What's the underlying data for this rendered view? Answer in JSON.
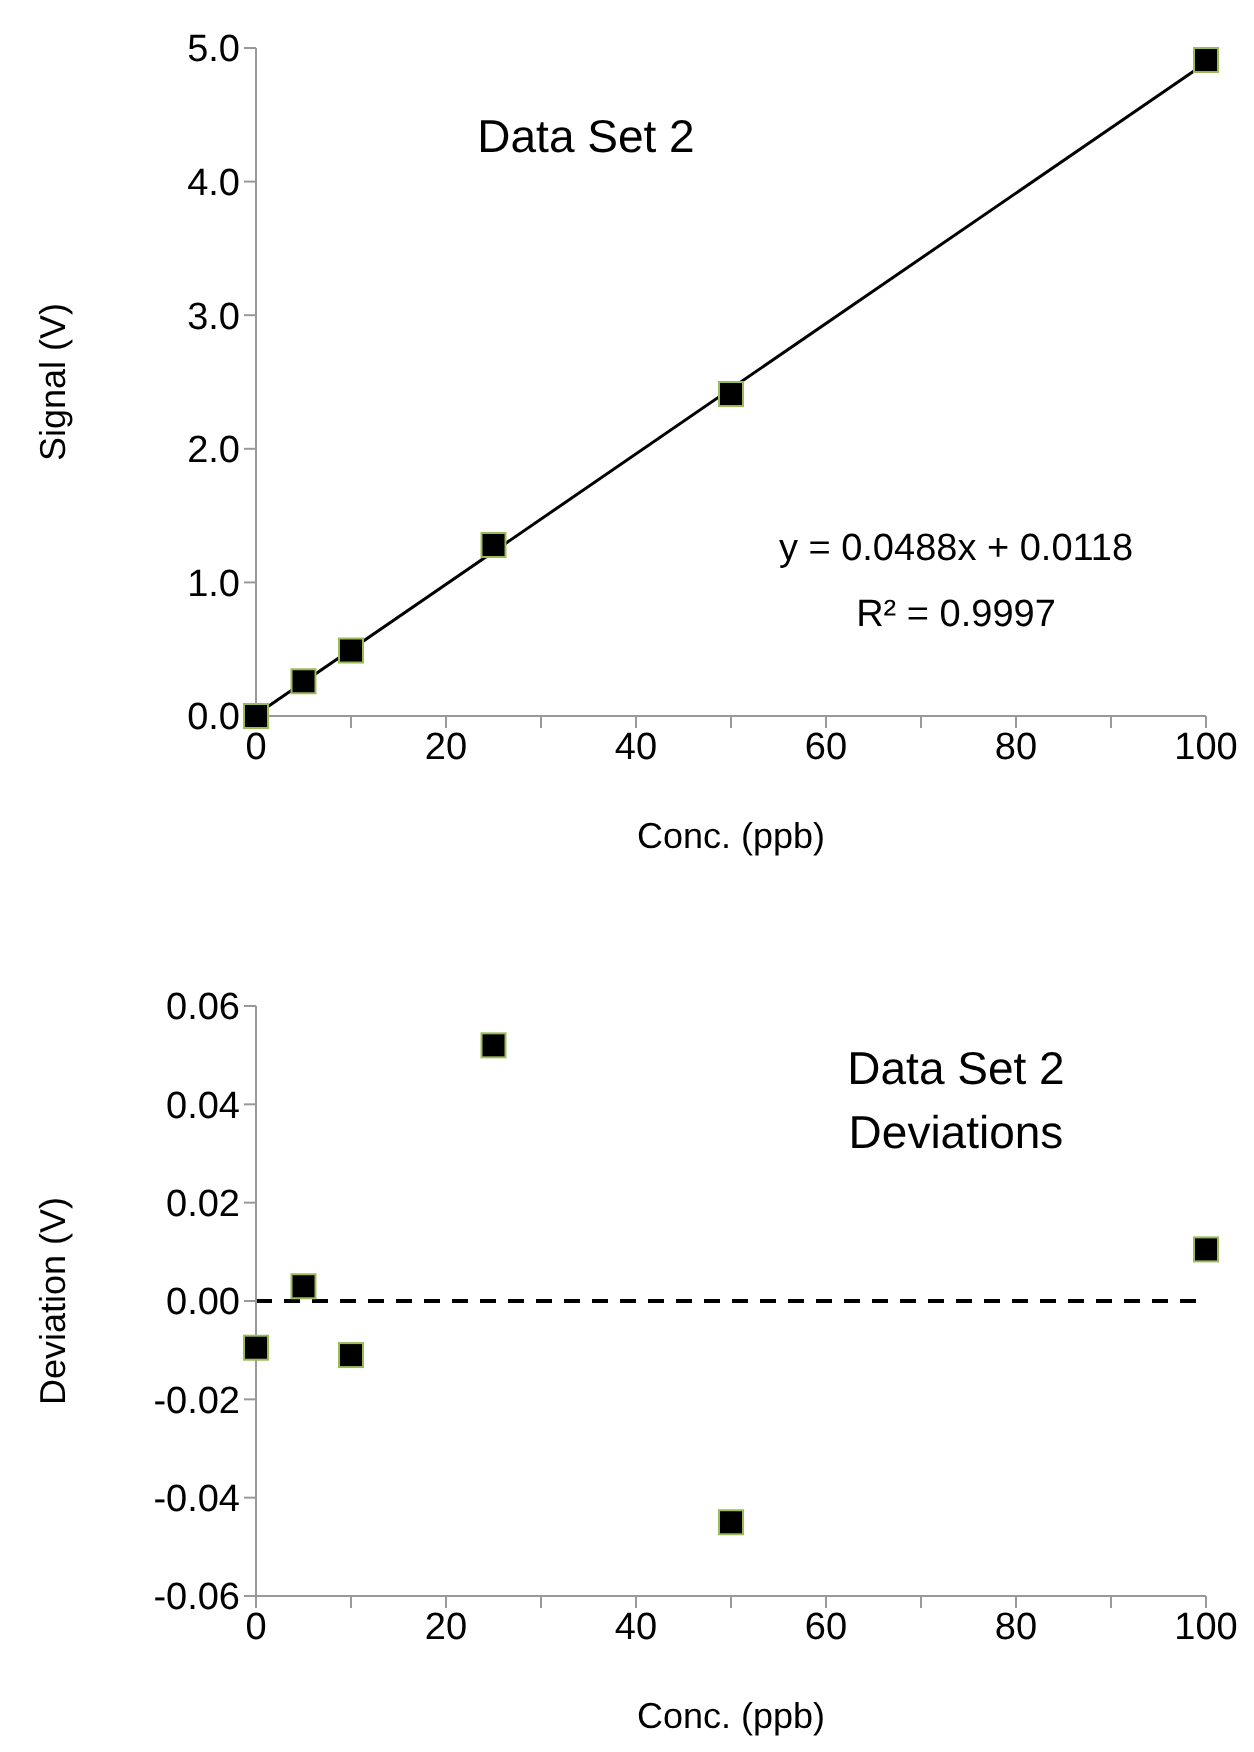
{
  "chart_data": [
    {
      "type": "scatter",
      "title": "Data Set 2",
      "xlabel": "Conc. (ppb)",
      "ylabel": "Signal (V)",
      "x": [
        0,
        5,
        10,
        25,
        50,
        100
      ],
      "series": [
        {
          "type": "scatter",
          "color": "#000000",
          "marker": "square",
          "values": [
            0,
            0.26,
            0.49,
            1.28,
            2.41,
            4.91
          ]
        },
        {
          "type": "line",
          "color": "#000000",
          "marker": "none",
          "line_style": "solid",
          "x": [
            0,
            100
          ],
          "values": [
            0.01,
            4.89
          ]
        }
      ],
      "annotations": [
        "y = 0.0488x + 0.0118",
        "R² = 0.9997"
      ],
      "xlim": [
        0,
        100
      ],
      "ylim": [
        0,
        5
      ],
      "xticks": [
        0,
        {
          "value": 10,
          "label": null
        },
        20,
        {
          "value": 30,
          "label": null
        },
        40,
        {
          "value": 50,
          "label": null
        },
        60,
        {
          "value": 70,
          "label": null
        },
        80,
        {
          "value": 90,
          "label": null
        },
        100
      ],
      "yticks": [
        {
          "value": 0,
          "label": "0.0"
        },
        {
          "value": 1,
          "label": "1.0"
        },
        {
          "value": 2,
          "label": "2.0"
        },
        {
          "value": 3,
          "label": "3.0"
        },
        {
          "value": 4,
          "label": "4.0"
        },
        {
          "value": 5,
          "label": "5.0"
        }
      ],
      "grid": false,
      "legend": false
    },
    {
      "type": "scatter",
      "title": "Data Set 2 Deviations",
      "xlabel": "Conc. (ppb)",
      "ylabel": "Deviation (V)",
      "x": [
        0,
        5,
        10,
        25,
        50,
        100
      ],
      "series": [
        {
          "type": "scatter",
          "color": "#000000",
          "marker": "square",
          "values": [
            -0.0095,
            0.003,
            -0.011,
            0.052,
            -0.045,
            0.0105
          ]
        }
      ],
      "ref_lines": [
        {
          "axis": "y",
          "value": 0,
          "line_style": "dashed",
          "color": "#000000"
        }
      ],
      "xlim": [
        0,
        100
      ],
      "ylim": [
        -0.06,
        0.06
      ],
      "xticks": [
        0,
        {
          "value": 10,
          "label": null
        },
        20,
        {
          "value": 30,
          "label": null
        },
        40,
        {
          "value": 50,
          "label": null
        },
        60,
        {
          "value": 70,
          "label": null
        },
        80,
        {
          "value": 90,
          "label": null
        },
        100
      ],
      "yticks": [
        {
          "value": -0.06,
          "label": "-0.06"
        },
        {
          "value": -0.04,
          "label": "-0.04"
        },
        {
          "value": -0.02,
          "label": "-0.02"
        },
        {
          "value": 0,
          "label": "0.00"
        },
        {
          "value": 0.02,
          "label": "0.02"
        },
        {
          "value": 0.04,
          "label": "0.04"
        },
        {
          "value": 0.06,
          "label": "0.06"
        }
      ],
      "grid": false,
      "legend": false
    }
  ]
}
